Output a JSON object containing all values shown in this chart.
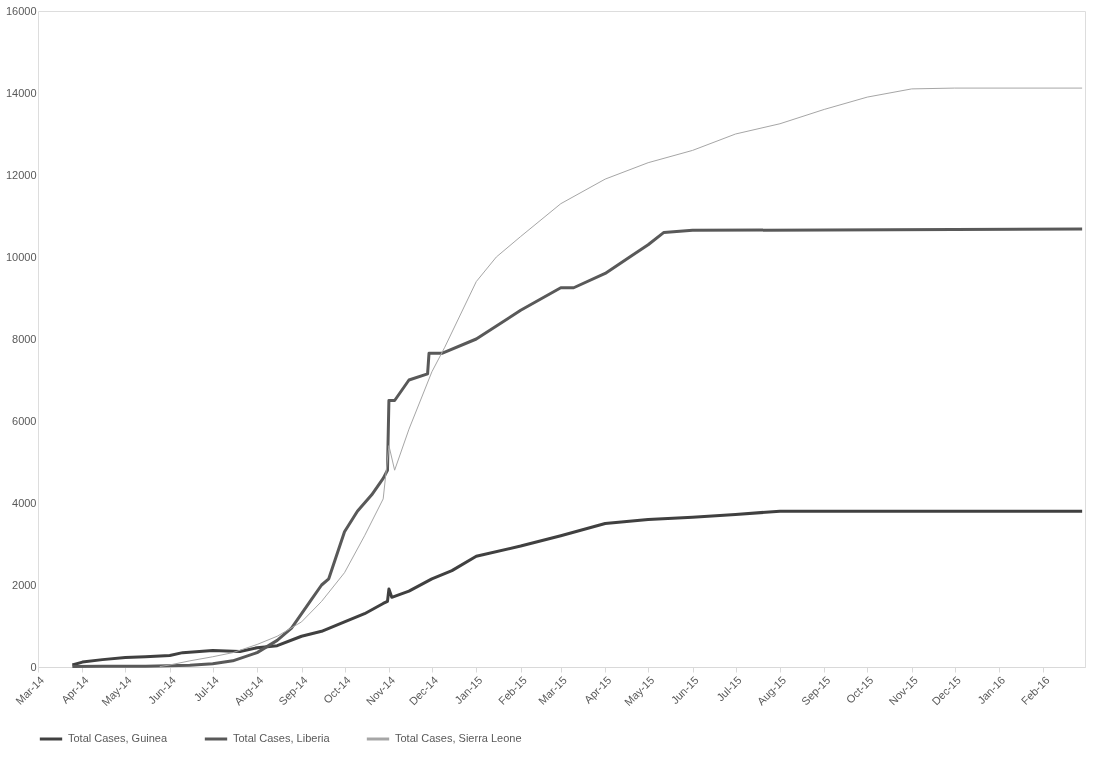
{
  "chart_data": {
    "type": "line",
    "legend": "bottom",
    "marker": "none",
    "line_style": "solid",
    "xlim": [
      "2014-03-01",
      "2016-03-01"
    ],
    "xticks": [
      {
        "value": "2014-03-01",
        "label": "Mar-14"
      },
      {
        "value": "2014-04-01",
        "label": "Apr-14"
      },
      {
        "value": "2014-05-01",
        "label": "May-14"
      },
      {
        "value": "2014-06-01",
        "label": "Jun-14"
      },
      {
        "value": "2014-07-01",
        "label": "Jul-14"
      },
      {
        "value": "2014-08-01",
        "label": "Aug-14"
      },
      {
        "value": "2014-09-01",
        "label": "Sep-14"
      },
      {
        "value": "2014-10-01",
        "label": "Oct-14"
      },
      {
        "value": "2014-11-01",
        "label": "Nov-14"
      },
      {
        "value": "2014-12-01",
        "label": "Dec-14"
      },
      {
        "value": "2015-01-01",
        "label": "Jan-15"
      },
      {
        "value": "2015-02-01",
        "label": "Feb-15"
      },
      {
        "value": "2015-03-01",
        "label": "Mar-15"
      },
      {
        "value": "2015-04-01",
        "label": "Apr-15"
      },
      {
        "value": "2015-05-01",
        "label": "May-15"
      },
      {
        "value": "2015-06-01",
        "label": "Jun-15"
      },
      {
        "value": "2015-07-01",
        "label": "Jul-15"
      },
      {
        "value": "2015-08-01",
        "label": "Aug-15"
      },
      {
        "value": "2015-09-01",
        "label": "Sep-15"
      },
      {
        "value": "2015-10-01",
        "label": "Oct-15"
      },
      {
        "value": "2015-11-01",
        "label": "Nov-15"
      },
      {
        "value": "2015-12-01",
        "label": "Dec-15"
      },
      {
        "value": "2016-01-01",
        "label": "Jan-16"
      },
      {
        "value": "2016-02-01",
        "label": "Feb-16"
      }
    ],
    "ylim": [
      0,
      16000
    ],
    "yticks": [
      0,
      2000,
      4000,
      6000,
      8000,
      10000,
      12000,
      14000,
      16000
    ],
    "series": [
      {
        "name": "Total Cases, Guinea",
        "color": "#404040",
        "x": [
          "2014-03-25",
          "2014-04-01",
          "2014-04-15",
          "2014-05-01",
          "2014-05-15",
          "2014-06-01",
          "2014-06-10",
          "2014-07-01",
          "2014-07-20",
          "2014-08-01",
          "2014-08-15",
          "2014-09-01",
          "2014-09-15",
          "2014-10-01",
          "2014-10-15",
          "2014-10-28",
          "2014-10-31",
          "2014-11-01",
          "2014-11-03",
          "2014-11-15",
          "2014-12-01",
          "2014-12-15",
          "2015-01-01",
          "2015-02-01",
          "2015-03-01",
          "2015-04-01",
          "2015-05-01",
          "2015-06-01",
          "2015-07-01",
          "2015-08-01",
          "2016-02-28"
        ],
        "values": [
          50,
          120,
          180,
          230,
          250,
          280,
          350,
          400,
          380,
          470,
          520,
          750,
          870,
          1100,
          1300,
          1550,
          1600,
          1900,
          1700,
          1850,
          2150,
          2350,
          2700,
          2950,
          3200,
          3500,
          3600,
          3650,
          3720,
          3800,
          3800
        ]
      },
      {
        "name": "Total Cases, Liberia",
        "color": "#595959",
        "x": [
          "2014-03-25",
          "2014-04-15",
          "2014-05-15",
          "2014-06-15",
          "2014-07-01",
          "2014-07-15",
          "2014-08-01",
          "2014-08-15",
          "2014-08-25",
          "2014-09-07",
          "2014-09-15",
          "2014-09-20",
          "2014-10-01",
          "2014-10-10",
          "2014-10-20",
          "2014-10-28",
          "2014-10-31",
          "2014-11-01",
          "2014-11-05",
          "2014-11-15",
          "2014-11-28",
          "2014-11-29",
          "2014-12-08",
          "2015-01-01",
          "2015-02-01",
          "2015-03-01",
          "2015-03-10",
          "2015-04-01",
          "2015-05-01",
          "2015-05-12",
          "2015-06-01",
          "2016-02-28"
        ],
        "values": [
          10,
          20,
          20,
          40,
          80,
          150,
          350,
          650,
          950,
          1600,
          2000,
          2150,
          3300,
          3800,
          4200,
          4600,
          4800,
          6500,
          6500,
          7000,
          7150,
          7650,
          7650,
          8000,
          8700,
          9250,
          9250,
          9600,
          10300,
          10600,
          10650,
          10680
        ]
      },
      {
        "name": "Total Cases, Sierra Leone",
        "color": "#a6a6a6",
        "x": [
          "2014-05-25",
          "2014-06-01",
          "2014-06-15",
          "2014-07-01",
          "2014-07-15",
          "2014-08-01",
          "2014-08-15",
          "2014-09-01",
          "2014-09-15",
          "2014-10-01",
          "2014-10-15",
          "2014-10-28",
          "2014-11-01",
          "2014-11-05",
          "2014-11-15",
          "2014-12-01",
          "2014-12-10",
          "2015-01-01",
          "2015-01-15",
          "2015-02-01",
          "2015-03-01",
          "2015-04-01",
          "2015-05-01",
          "2015-06-01",
          "2015-07-01",
          "2015-08-01",
          "2015-09-01",
          "2015-10-01",
          "2015-11-01",
          "2015-12-01",
          "2016-02-28"
        ],
        "values": [
          10,
          50,
          150,
          250,
          350,
          550,
          750,
          1100,
          1600,
          2300,
          3200,
          4100,
          5400,
          4800,
          5800,
          7200,
          7800,
          9400,
          10000,
          10500,
          11300,
          11900,
          12300,
          12600,
          13000,
          13250,
          13600,
          13900,
          14100,
          14120,
          14120
        ]
      }
    ]
  }
}
